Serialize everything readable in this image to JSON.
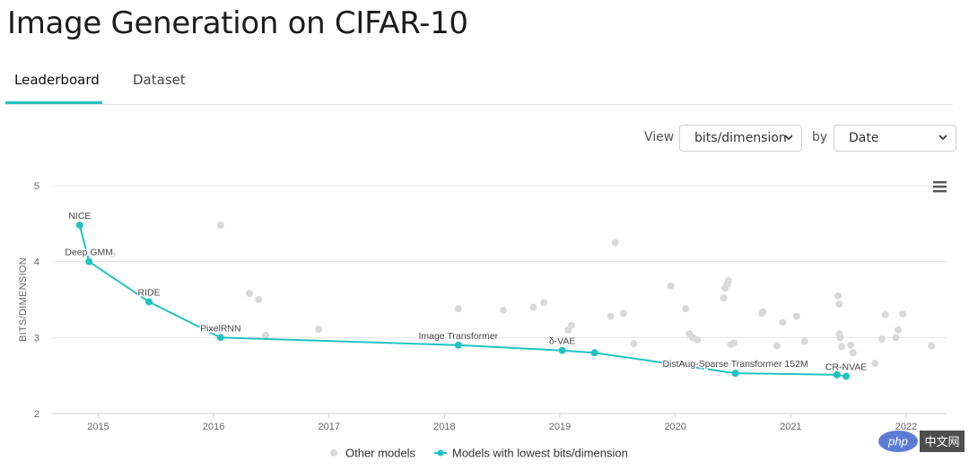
{
  "page": {
    "title": "Image Generation on CIFAR-10"
  },
  "tabs": [
    {
      "label": "Leaderboard",
      "active": true
    },
    {
      "label": "Dataset",
      "active": false
    }
  ],
  "controls": {
    "view_label": "View",
    "view_value": "bits/dimension",
    "by_label": "by",
    "by_value": "Date"
  },
  "colors": {
    "accent": "#21c2c2",
    "other_points": "#d9d9d9"
  },
  "chart_data": {
    "type": "scatter",
    "ylabel": "BITS/DIMENSION",
    "ylim": [
      2,
      5
    ],
    "yticks": [
      2,
      3,
      4,
      5
    ],
    "xlim": [
      2014.6,
      2022.35
    ],
    "xticks": [
      2015,
      2016,
      2017,
      2018,
      2019,
      2020,
      2021,
      2022
    ],
    "grid": true,
    "legend": {
      "position": "bottom-center",
      "items": [
        "Other models",
        "Models with lowest bits/dimension"
      ]
    },
    "series": [
      {
        "name": "Models with lowest bits/dimension",
        "points": [
          {
            "x": 2014.84,
            "y": 4.48,
            "label": "NICE"
          },
          {
            "x": 2014.92,
            "y": 4.0,
            "label": "Deep GMM"
          },
          {
            "x": 2015.44,
            "y": 3.47,
            "label": "RIDE"
          },
          {
            "x": 2016.06,
            "y": 3.0,
            "label": "PixelRNN"
          },
          {
            "x": 2018.12,
            "y": 2.9,
            "label": "Image Transformer"
          },
          {
            "x": 2019.02,
            "y": 2.83,
            "label": "δ-VAE"
          },
          {
            "x": 2019.3,
            "y": 2.8,
            "label": ""
          },
          {
            "x": 2020.52,
            "y": 2.53,
            "label": "DistAug-Sparse Transformer 152M"
          },
          {
            "x": 2021.4,
            "y": 2.51,
            "label": ""
          },
          {
            "x": 2021.48,
            "y": 2.49,
            "label": "CR-NVAE"
          }
        ]
      },
      {
        "name": "Other models",
        "points": [
          {
            "x": 2015.12,
            "y": 4.1
          },
          {
            "x": 2016.06,
            "y": 4.48
          },
          {
            "x": 2016.31,
            "y": 3.58
          },
          {
            "x": 2016.39,
            "y": 3.5
          },
          {
            "x": 2016.45,
            "y": 3.03
          },
          {
            "x": 2016.91,
            "y": 3.11
          },
          {
            "x": 2018.12,
            "y": 3.38
          },
          {
            "x": 2018.51,
            "y": 3.36
          },
          {
            "x": 2018.77,
            "y": 3.4
          },
          {
            "x": 2018.86,
            "y": 3.46
          },
          {
            "x": 2019.07,
            "y": 3.1
          },
          {
            "x": 2019.1,
            "y": 3.16
          },
          {
            "x": 2019.44,
            "y": 3.28
          },
          {
            "x": 2019.48,
            "y": 4.25
          },
          {
            "x": 2019.55,
            "y": 3.32
          },
          {
            "x": 2019.64,
            "y": 2.92
          },
          {
            "x": 2019.96,
            "y": 3.68
          },
          {
            "x": 2020.09,
            "y": 3.38
          },
          {
            "x": 2020.12,
            "y": 3.05
          },
          {
            "x": 2020.15,
            "y": 3.0
          },
          {
            "x": 2020.19,
            "y": 2.97
          },
          {
            "x": 2020.42,
            "y": 3.52
          },
          {
            "x": 2020.43,
            "y": 3.65
          },
          {
            "x": 2020.45,
            "y": 3.7
          },
          {
            "x": 2020.46,
            "y": 3.75
          },
          {
            "x": 2020.48,
            "y": 2.91
          },
          {
            "x": 2020.51,
            "y": 2.93
          },
          {
            "x": 2020.75,
            "y": 3.32
          },
          {
            "x": 2020.76,
            "y": 3.34
          },
          {
            "x": 2020.88,
            "y": 2.89
          },
          {
            "x": 2020.93,
            "y": 3.2
          },
          {
            "x": 2021.05,
            "y": 3.28
          },
          {
            "x": 2021.12,
            "y": 2.95
          },
          {
            "x": 2021.41,
            "y": 3.55
          },
          {
            "x": 2021.42,
            "y": 3.44
          },
          {
            "x": 2021.42,
            "y": 3.05
          },
          {
            "x": 2021.43,
            "y": 3.0
          },
          {
            "x": 2021.44,
            "y": 2.88
          },
          {
            "x": 2021.52,
            "y": 2.9
          },
          {
            "x": 2021.54,
            "y": 2.8
          },
          {
            "x": 2021.73,
            "y": 2.66
          },
          {
            "x": 2021.79,
            "y": 2.98
          },
          {
            "x": 2021.82,
            "y": 3.3
          },
          {
            "x": 2021.91,
            "y": 3.0
          },
          {
            "x": 2021.93,
            "y": 3.1
          },
          {
            "x": 2021.97,
            "y": 3.31
          },
          {
            "x": 2022.22,
            "y": 2.89
          }
        ]
      }
    ]
  },
  "watermark": {
    "text": "中文网",
    "logo": "php"
  }
}
